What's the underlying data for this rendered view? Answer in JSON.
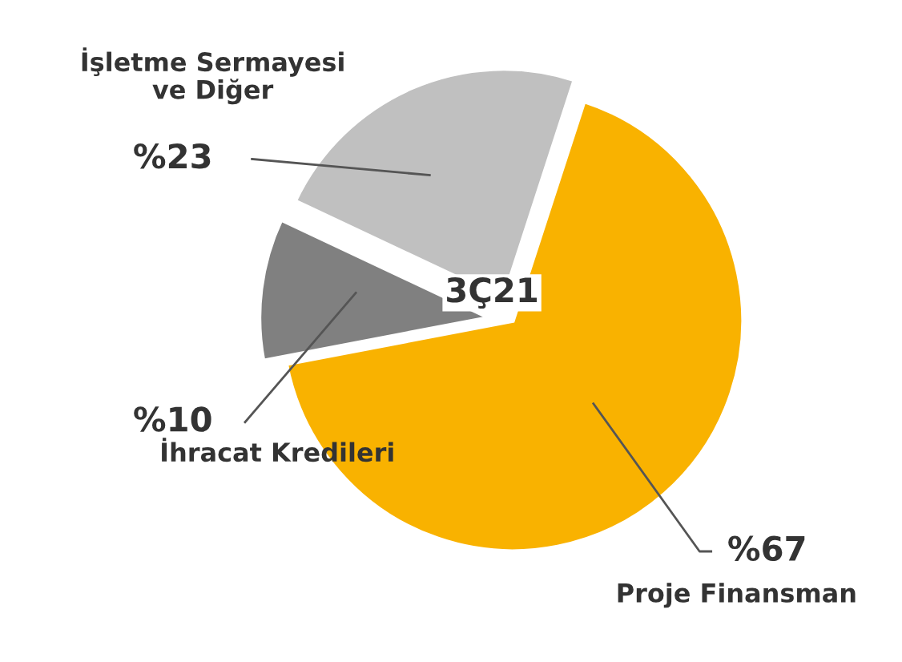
{
  "chart_data": {
    "type": "pie",
    "title": "3Ç21",
    "categories": [
      "Proje Finansman",
      "İhracat Kredileri",
      "İşletme Sermayesi ve Diğer"
    ],
    "values": [
      67,
      10,
      23
    ],
    "value_labels": [
      "%67",
      "%10",
      "%23"
    ],
    "colors": [
      "#f9b200",
      "#808080",
      "#c0c0c0"
    ],
    "legend": false
  }
}
